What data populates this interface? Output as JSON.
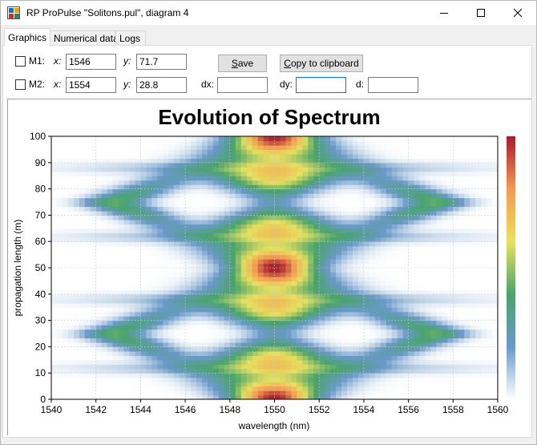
{
  "window": {
    "title": "RP ProPulse \"Solitons.pul\", diagram 4",
    "icon": "propulse-app-icon",
    "buttons": [
      "minimize-icon",
      "maximize-icon",
      "close-icon"
    ]
  },
  "tabs": [
    {
      "label": "Graphics",
      "active": true
    },
    {
      "label": "Numerical data",
      "active": false
    },
    {
      "label": "Logs",
      "active": false
    }
  ],
  "markers": {
    "m1": {
      "label": "M1:",
      "checked": false,
      "x_label": "x:",
      "x": "1546",
      "y_label": "y:",
      "y": "71.7"
    },
    "m2": {
      "label": "M2:",
      "checked": false,
      "x_label": "x:",
      "x": "1554",
      "y_label": "y:",
      "y": "28.8"
    }
  },
  "deltas": {
    "dx_label": "dx:",
    "dx": "",
    "dy_label": "dy:",
    "dy": "",
    "d_label": "d:",
    "d": ""
  },
  "buttons": {
    "save_accel": "S",
    "save_rest": "ave",
    "copy_accel": "C",
    "copy_rest": "opy to clipboard"
  },
  "chart_data": {
    "type": "heatmap",
    "title": "Evolution of Spectrum",
    "xlabel": "wavelength (nm)",
    "ylabel": "propagation length (m)",
    "xlim": [
      1540,
      1560
    ],
    "ylim": [
      0,
      100
    ],
    "xticks": [
      "1540",
      "1542",
      "1544",
      "1546",
      "1548",
      "1550",
      "1552",
      "1554",
      "1556",
      "1558",
      "1560"
    ],
    "yticks": [
      "0",
      "10",
      "20",
      "30",
      "40",
      "50",
      "60",
      "70",
      "80",
      "90",
      "100"
    ],
    "yticks_values": [
      0,
      10,
      20,
      30,
      40,
      50,
      60,
      70,
      80,
      90,
      100
    ],
    "xticks_values": [
      1540,
      1542,
      1544,
      1546,
      1548,
      1550,
      1552,
      1554,
      1556,
      1558,
      1560
    ],
    "colormap": [
      "#ffffff",
      "#6a99c9",
      "#49a46a",
      "#e8e160",
      "#f29a52",
      "#a51c2f"
    ],
    "spectrum_center": 1550,
    "peak_maxima_y": [
      0,
      50,
      100
    ],
    "peak_minima_y": [
      12,
      38,
      62,
      88
    ],
    "grid": true,
    "colorbar": true
  }
}
